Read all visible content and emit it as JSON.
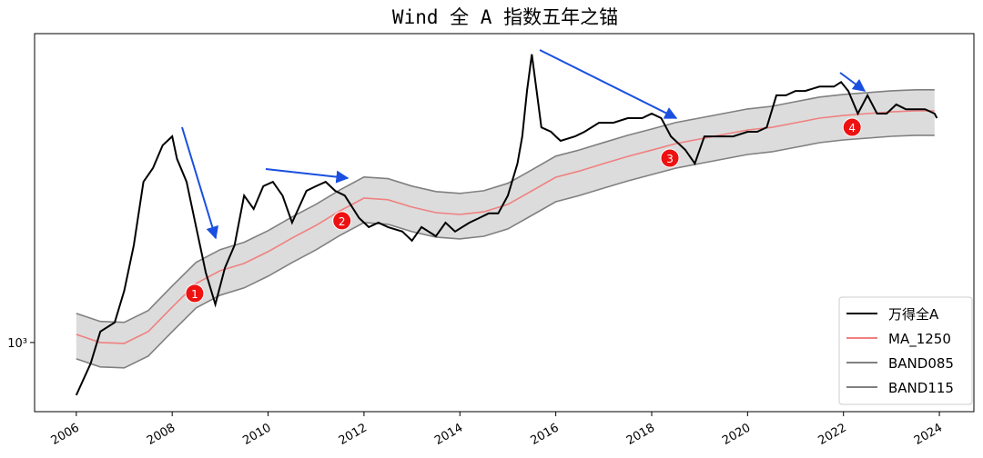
{
  "chart_data": {
    "type": "line",
    "title": "Wind 全 A 指数五年之锚",
    "yscale": "log",
    "xlim": [
      2005.13,
      2024.72
    ],
    "ylim": [
      632,
      7762
    ],
    "xticks": [
      2006,
      2008,
      2010,
      2012,
      2014,
      2016,
      2018,
      2020,
      2022,
      2024
    ],
    "yticks": [
      {
        "value": 1000,
        "label": "10³"
      }
    ],
    "legend": "lower right",
    "band_fill": "#dcdcdc",
    "series": [
      {
        "name": "万得全A",
        "color": "#000000",
        "x": [
          2006.0,
          2006.3,
          2006.5,
          2006.8,
          2007.0,
          2007.2,
          2007.4,
          2007.6,
          2007.8,
          2008.0,
          2008.1,
          2008.3,
          2008.5,
          2008.7,
          2008.9,
          2009.1,
          2009.3,
          2009.5,
          2009.7,
          2009.9,
          2010.1,
          2010.3,
          2010.5,
          2010.8,
          2011.0,
          2011.2,
          2011.4,
          2011.6,
          2011.9,
          2012.1,
          2012.3,
          2012.5,
          2012.8,
          2013.0,
          2013.2,
          2013.5,
          2013.7,
          2013.9,
          2014.2,
          2014.4,
          2014.6,
          2014.8,
          2015.0,
          2015.2,
          2015.3,
          2015.4,
          2015.5,
          2015.6,
          2015.7,
          2015.9,
          2016.0,
          2016.1,
          2016.4,
          2016.6,
          2016.9,
          2017.2,
          2017.5,
          2017.8,
          2018.0,
          2018.2,
          2018.4,
          2018.7,
          2018.9,
          2019.1,
          2019.4,
          2019.7,
          2020.0,
          2020.2,
          2020.4,
          2020.6,
          2020.8,
          2021.0,
          2021.2,
          2021.5,
          2021.8,
          2021.95,
          2022.1,
          2022.3,
          2022.5,
          2022.7,
          2022.9,
          2023.1,
          2023.3,
          2023.5,
          2023.7,
          2023.9,
          2023.95
        ],
        "values": [
          705,
          870,
          1075,
          1142,
          1410,
          1906,
          2903,
          3182,
          3700,
          3925,
          3380,
          2903,
          2150,
          1590,
          1288,
          1640,
          1906,
          2650,
          2425,
          2820,
          2903,
          2650,
          2215,
          2735,
          2820,
          2903,
          2735,
          2650,
          2283,
          2150,
          2215,
          2150,
          2088,
          1965,
          2150,
          2025,
          2215,
          2088,
          2215,
          2283,
          2355,
          2355,
          2650,
          3277,
          3925,
          5305,
          6770,
          5305,
          4167,
          4047,
          3925,
          3810,
          3925,
          4047,
          4296,
          4296,
          4430,
          4430,
          4565,
          4430,
          3925,
          3590,
          3277,
          3925,
          3925,
          3925,
          4047,
          4047,
          4167,
          5155,
          5155,
          5305,
          5305,
          5460,
          5460,
          5630,
          5305,
          4565,
          5155,
          4565,
          4565,
          4850,
          4700,
          4700,
          4700,
          4565,
          4430
        ]
      },
      {
        "name": "MA_1250",
        "color": "#f08080",
        "x": [
          2006,
          2006.5,
          2007,
          2007.5,
          2008,
          2008.5,
          2009,
          2009.5,
          2010,
          2010.5,
          2011,
          2011.5,
          2012,
          2012.5,
          2013,
          2013.5,
          2014,
          2014.5,
          2015,
          2015.5,
          2016,
          2016.5,
          2017,
          2017.5,
          2018,
          2018.5,
          2019,
          2019.5,
          2020,
          2020.5,
          2021,
          2021.5,
          2022,
          2022.5,
          2023,
          2023.5,
          2023.9
        ],
        "values": [
          1055,
          1000,
          994,
          1075,
          1265,
          1480,
          1610,
          1690,
          1827,
          2000,
          2175,
          2395,
          2607,
          2578,
          2455,
          2367,
          2339,
          2380,
          2500,
          2734,
          2994,
          3122,
          3277,
          3437,
          3584,
          3740,
          3856,
          3974,
          4096,
          4167,
          4296,
          4430,
          4510,
          4565,
          4620,
          4650,
          4650
        ]
      },
      {
        "name": "BAND085",
        "color": "#808080",
        "x": [
          2006,
          2006.5,
          2007,
          2007.5,
          2008,
          2008.5,
          2009,
          2009.5,
          2010,
          2010.5,
          2011,
          2011.5,
          2012,
          2012.5,
          2013,
          2013.5,
          2014,
          2014.5,
          2015,
          2015.5,
          2016,
          2016.5,
          2017,
          2017.5,
          2018,
          2018.5,
          2019,
          2019.5,
          2020,
          2020.5,
          2021,
          2021.5,
          2022,
          2022.5,
          2023,
          2023.5,
          2023.9
        ],
        "values": [
          897,
          850,
          845,
          914,
          1075,
          1258,
          1369,
          1437,
          1553,
          1700,
          1849,
          2036,
          2216,
          2191,
          2087,
          2012,
          1988,
          2023,
          2125,
          2324,
          2545,
          2654,
          2785,
          2921,
          3046,
          3179,
          3278,
          3378,
          3482,
          3542,
          3652,
          3766,
          3834,
          3880,
          3927,
          3953,
          3953
        ]
      },
      {
        "name": "BAND115",
        "color": "#808080",
        "x": [
          2006,
          2006.5,
          2007,
          2007.5,
          2008,
          2008.5,
          2009,
          2009.5,
          2010,
          2010.5,
          2011,
          2011.5,
          2012,
          2012.5,
          2013,
          2013.5,
          2014,
          2014.5,
          2015,
          2015.5,
          2016,
          2016.5,
          2017,
          2017.5,
          2018,
          2018.5,
          2019,
          2019.5,
          2020,
          2020.5,
          2021,
          2021.5,
          2022,
          2022.5,
          2023,
          2023.5,
          2023.9
        ],
        "values": [
          1213,
          1150,
          1143,
          1236,
          1455,
          1702,
          1852,
          1944,
          2101,
          2300,
          2501,
          2754,
          2998,
          2965,
          2823,
          2722,
          2690,
          2737,
          2875,
          3144,
          3443,
          3590,
          3769,
          3953,
          4122,
          4301,
          4434,
          4570,
          4710,
          4792,
          4940,
          5095,
          5187,
          5250,
          5313,
          5348,
          5348
        ]
      }
    ],
    "annotations": [
      {
        "label": "1",
        "x": 2008.47,
        "y": 1385
      },
      {
        "label": "2",
        "x": 2011.54,
        "y": 2243
      },
      {
        "label": "3",
        "x": 2018.38,
        "y": 3398
      },
      {
        "label": "4",
        "x": 2022.18,
        "y": 4170
      }
    ]
  }
}
